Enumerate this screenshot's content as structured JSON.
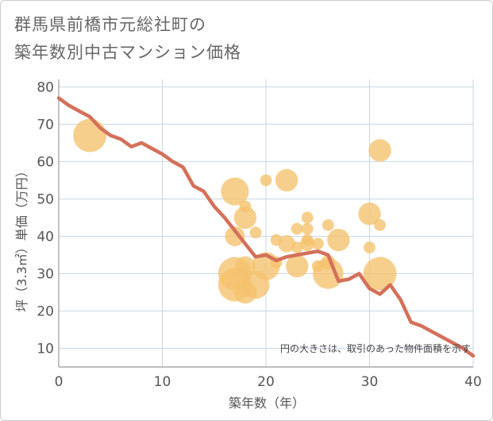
{
  "chart_data": {
    "type": "scatter",
    "title_lines": [
      "群馬県前橋市元総社町の",
      "築年数別中古マンション価格"
    ],
    "xlabel": "築年数（年）",
    "ylabel": "坪（3.3㎡）単価（万円）",
    "xlim": [
      0,
      40
    ],
    "ylim": [
      5,
      82
    ],
    "xticks": [
      "0",
      "10",
      "20",
      "30",
      "40"
    ],
    "yticks": [
      "10",
      "20",
      "30",
      "40",
      "50",
      "60",
      "70",
      "80"
    ],
    "grid": true,
    "annotation": "円の大きさは、取引のあった物件面積を示す",
    "colors": {
      "bubble": "#f5c26b",
      "line": "#d4705a",
      "grid": "#c9d6e6",
      "axis": "#999999"
    },
    "bubbles": [
      {
        "x": 3,
        "y": 67,
        "size": 5
      },
      {
        "x": 17,
        "y": 52,
        "size": 4
      },
      {
        "x": 17,
        "y": 40,
        "size": 2.5
      },
      {
        "x": 17,
        "y": 30,
        "size": 5
      },
      {
        "x": 17,
        "y": 27,
        "size": 5
      },
      {
        "x": 18,
        "y": 48,
        "size": 1
      },
      {
        "x": 18,
        "y": 45,
        "size": 3
      },
      {
        "x": 18,
        "y": 32,
        "size": 2.5
      },
      {
        "x": 18,
        "y": 25,
        "size": 3
      },
      {
        "x": 19,
        "y": 41,
        "size": 1
      },
      {
        "x": 19,
        "y": 27,
        "size": 4
      },
      {
        "x": 20,
        "y": 55,
        "size": 1
      },
      {
        "x": 20,
        "y": 32,
        "size": 4
      },
      {
        "x": 21,
        "y": 39,
        "size": 1
      },
      {
        "x": 21,
        "y": 33,
        "size": 1
      },
      {
        "x": 22,
        "y": 55,
        "size": 3
      },
      {
        "x": 22,
        "y": 38,
        "size": 2
      },
      {
        "x": 23,
        "y": 42,
        "size": 1
      },
      {
        "x": 23,
        "y": 37,
        "size": 1
      },
      {
        "x": 23,
        "y": 32,
        "size": 3
      },
      {
        "x": 24,
        "y": 45,
        "size": 1
      },
      {
        "x": 24,
        "y": 42,
        "size": 1
      },
      {
        "x": 24,
        "y": 39,
        "size": 1
      },
      {
        "x": 24,
        "y": 38,
        "size": 1.5
      },
      {
        "x": 25,
        "y": 38,
        "size": 1
      },
      {
        "x": 25,
        "y": 32,
        "size": 1
      },
      {
        "x": 26,
        "y": 43,
        "size": 1
      },
      {
        "x": 26,
        "y": 33,
        "size": 1.5
      },
      {
        "x": 26,
        "y": 30,
        "size": 4.5
      },
      {
        "x": 27,
        "y": 39,
        "size": 3
      },
      {
        "x": 30,
        "y": 46,
        "size": 3
      },
      {
        "x": 30,
        "y": 37,
        "size": 1
      },
      {
        "x": 31,
        "y": 63,
        "size": 3
      },
      {
        "x": 31,
        "y": 43,
        "size": 1
      },
      {
        "x": 31,
        "y": 30,
        "size": 5
      }
    ],
    "trend": {
      "x": [
        0,
        1,
        2,
        3,
        4,
        5,
        6,
        7,
        8,
        9,
        10,
        11,
        12,
        13,
        14,
        15,
        16,
        17,
        18,
        19,
        20,
        21,
        22,
        23,
        24,
        25,
        26,
        27,
        28,
        29,
        30,
        31,
        32,
        33,
        34,
        35,
        36,
        37,
        38,
        39,
        40
      ],
      "y": [
        77,
        75,
        73.5,
        72,
        69,
        67,
        66,
        64,
        65,
        63.5,
        62,
        60,
        58.5,
        53.5,
        52,
        48,
        45,
        41.5,
        38,
        34.5,
        35,
        33.5,
        34.5,
        35,
        35.5,
        36,
        35,
        28,
        28.5,
        30,
        26,
        24.5,
        27,
        23,
        17,
        16,
        14.5,
        13,
        11.5,
        10,
        8
      ]
    }
  }
}
